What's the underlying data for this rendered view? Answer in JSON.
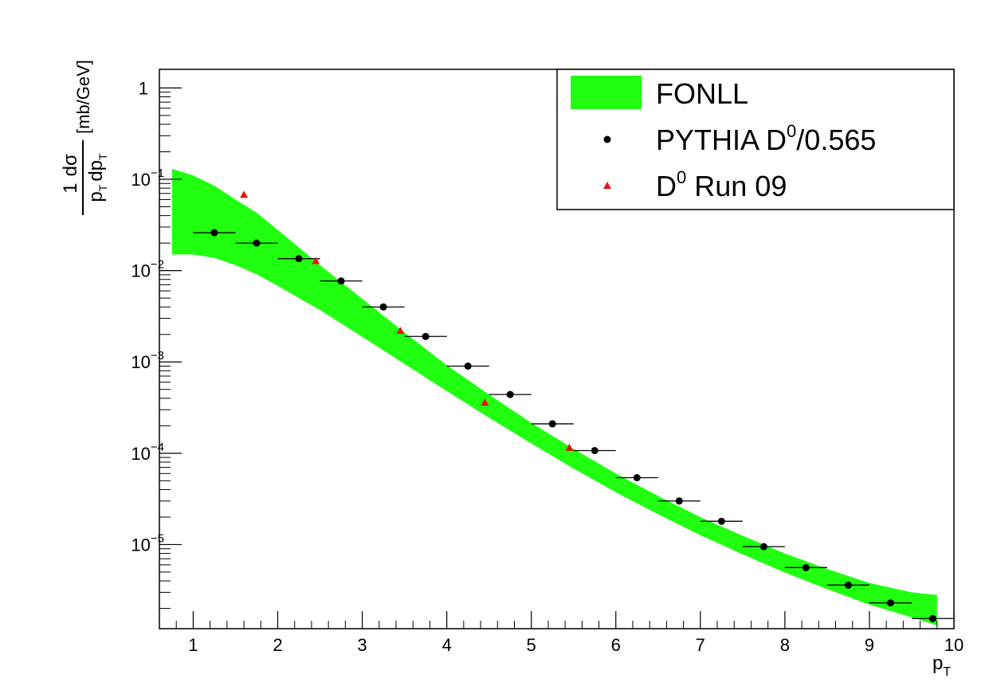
{
  "chart_data": {
    "type": "scatter",
    "title": "",
    "xlabel": "p",
    "xlabel_sub": "T",
    "ylabel": {
      "frac_num_1": "1",
      "frac_num_2": "dσ",
      "frac_den_p1": "p",
      "frac_den_t1": "T",
      "frac_den_dp": "dp",
      "frac_den_t2": "T",
      "units": "[mb/GeV]"
    },
    "xlim": [
      0.6,
      10.0
    ],
    "ylim": [
      1.2e-06,
      1.6
    ],
    "yscale": "log",
    "grid": false,
    "legend_position": "top-right",
    "x_ticks": [
      1,
      2,
      3,
      4,
      5,
      6,
      7,
      8,
      9,
      10
    ],
    "x_tick_labels": [
      "1",
      "2",
      "3",
      "4",
      "5",
      "6",
      "7",
      "8",
      "9",
      "10"
    ],
    "y_ticks": [
      {
        "value": 1,
        "base": "1",
        "exp": ""
      },
      {
        "value": 0.1,
        "base": "10",
        "exp": "−1"
      },
      {
        "value": 0.01,
        "base": "10",
        "exp": "−2"
      },
      {
        "value": 0.001,
        "base": "10",
        "exp": "−3"
      },
      {
        "value": 0.0001,
        "base": "10",
        "exp": "−4"
      },
      {
        "value": 1e-05,
        "base": "10",
        "exp": "−5"
      }
    ],
    "fonll_band": {
      "name": "FONLL",
      "color": "#1fff0f",
      "x": [
        0.75,
        1.0,
        1.25,
        1.5,
        1.75,
        2.0,
        2.5,
        3.0,
        3.5,
        4.0,
        4.5,
        5.0,
        5.5,
        6.0,
        6.5,
        7.0,
        7.5,
        8.0,
        8.5,
        9.0,
        9.5,
        9.8
      ],
      "upper": [
        0.13,
        0.11,
        0.085,
        0.06,
        0.043,
        0.028,
        0.0115,
        0.0049,
        0.0021,
        0.00092,
        0.00044,
        0.000215,
        0.000112,
        6e-05,
        3.4e-05,
        2e-05,
        1.25e-05,
        8e-06,
        5.4e-06,
        3.8e-06,
        3e-06,
        2.8e-06
      ],
      "lower": [
        0.015,
        0.015,
        0.0138,
        0.0115,
        0.0091,
        0.0068,
        0.0037,
        0.00188,
        0.00095,
        0.00048,
        0.000245,
        0.000128,
        6.8e-05,
        3.75e-05,
        2.15e-05,
        1.27e-05,
        7.8e-06,
        4.95e-06,
        3.25e-06,
        2.2e-06,
        1.6e-06,
        1.3e-06
      ]
    },
    "series": [
      {
        "name": "PYTHIA D",
        "name_sup": "0",
        "name_suffix": "/0.565",
        "color": "#000000",
        "marker": "circle",
        "x": [
          1.25,
          1.75,
          2.25,
          2.75,
          3.25,
          3.75,
          4.25,
          4.75,
          5.25,
          5.75,
          6.25,
          6.75,
          7.25,
          7.75,
          8.25,
          8.75,
          9.25,
          9.75
        ],
        "xerr": 0.25,
        "y": [
          0.026,
          0.02,
          0.0135,
          0.0077,
          0.004,
          0.0019,
          0.0009,
          0.00044,
          0.00021,
          0.000107,
          5.4e-05,
          3e-05,
          1.8e-05,
          9.5e-06,
          5.6e-06,
          3.6e-06,
          2.3e-06,
          1.55e-06
        ]
      },
      {
        "name": "D",
        "name_sup": "0",
        "name_suffix": " Run 09",
        "color": "#e8120e",
        "marker": "triangle",
        "x": [
          1.6,
          2.45,
          3.45,
          4.45,
          5.45
        ],
        "y": [
          0.068,
          0.0128,
          0.0022,
          0.00036,
          0.000115
        ]
      }
    ]
  }
}
